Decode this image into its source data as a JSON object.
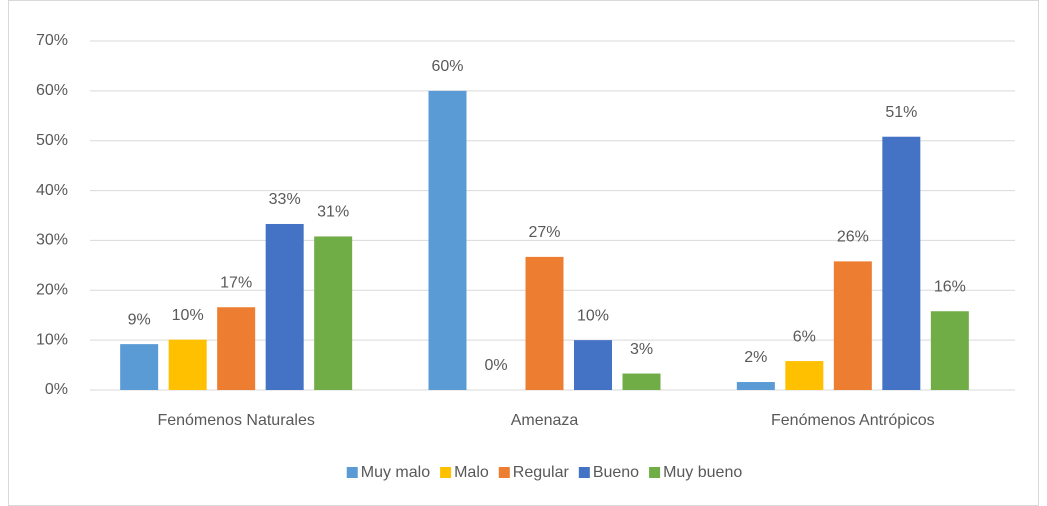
{
  "chart_data": {
    "type": "bar",
    "categories": [
      "Fenómenos Naturales",
      "Amenaza",
      "Fenómenos Antrópicos"
    ],
    "series": [
      {
        "name": "Muy malo",
        "color": "#5b9bd5",
        "values": [
          9.2,
          60,
          1.6
        ],
        "value_labels": [
          "9%",
          "60%",
          "2%"
        ]
      },
      {
        "name": "Malo",
        "color": "#ffc000",
        "values": [
          10.1,
          0,
          5.8
        ],
        "value_labels": [
          "10%",
          "0%",
          "6%"
        ]
      },
      {
        "name": "Regular",
        "color": "#ed7d31",
        "values": [
          16.6,
          26.7,
          25.8
        ],
        "value_labels": [
          "17%",
          "27%",
          "26%"
        ]
      },
      {
        "name": "Bueno",
        "color": "#4472c4",
        "values": [
          33.3,
          10,
          50.8
        ],
        "value_labels": [
          "33%",
          "10%",
          "51%"
        ]
      },
      {
        "name": "Muy bueno",
        "color": "#70ad47",
        "values": [
          30.8,
          3.3,
          15.8
        ],
        "value_labels": [
          "31%",
          "3%",
          "16%"
        ]
      }
    ],
    "ylim": [
      0,
      70
    ],
    "yticks": [
      {
        "value": 0,
        "label": "0%"
      },
      {
        "value": 10,
        "label": "10%"
      },
      {
        "value": 20,
        "label": "20%"
      },
      {
        "value": 30,
        "label": "30%"
      },
      {
        "value": 40,
        "label": "40%"
      },
      {
        "value": 50,
        "label": "50%"
      },
      {
        "value": 60,
        "label": "60%"
      },
      {
        "value": 70,
        "label": "70%"
      }
    ],
    "grid": true,
    "legend": "bottom"
  }
}
